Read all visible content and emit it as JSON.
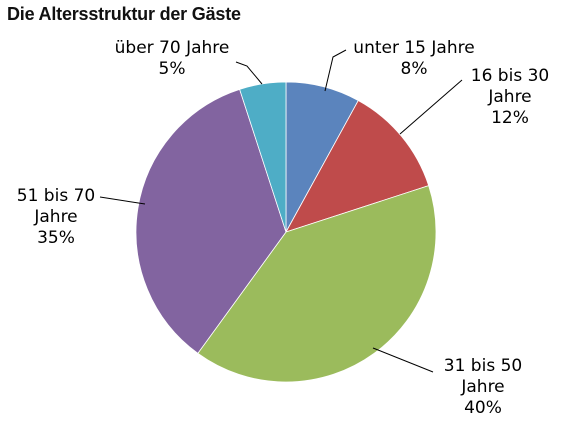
{
  "chart_data": {
    "type": "pie",
    "title": "Die Altersstruktur der Gäste",
    "slices": [
      {
        "name": "unter 15 Jahre",
        "value": 8,
        "label_lines": [
          "unter 15 Jahre"
        ],
        "pct_label": "8%",
        "color": "#5b84bd"
      },
      {
        "name": "16 bis 30 Jahre",
        "value": 12,
        "label_lines": [
          "16 bis 30",
          "Jahre"
        ],
        "pct_label": "12%",
        "color": "#bf4b4b"
      },
      {
        "name": "31 bis 50 Jahre",
        "value": 40,
        "label_lines": [
          "31 bis 50",
          "Jahre"
        ],
        "pct_label": "40%",
        "color": "#9bbb5c"
      },
      {
        "name": "51 bis 70 Jahre",
        "value": 35,
        "label_lines": [
          "51 bis 70",
          "Jahre"
        ],
        "pct_label": "35%",
        "color": "#8264a0"
      },
      {
        "name": "über 70 Jahre",
        "value": 5,
        "label_lines": [
          "über 70 Jahre"
        ],
        "pct_label": "5%",
        "color": "#4eadc6"
      }
    ],
    "start_angle_deg": 0,
    "direction": "clockwise",
    "legend": "none",
    "leader_line_color": "#000000"
  }
}
